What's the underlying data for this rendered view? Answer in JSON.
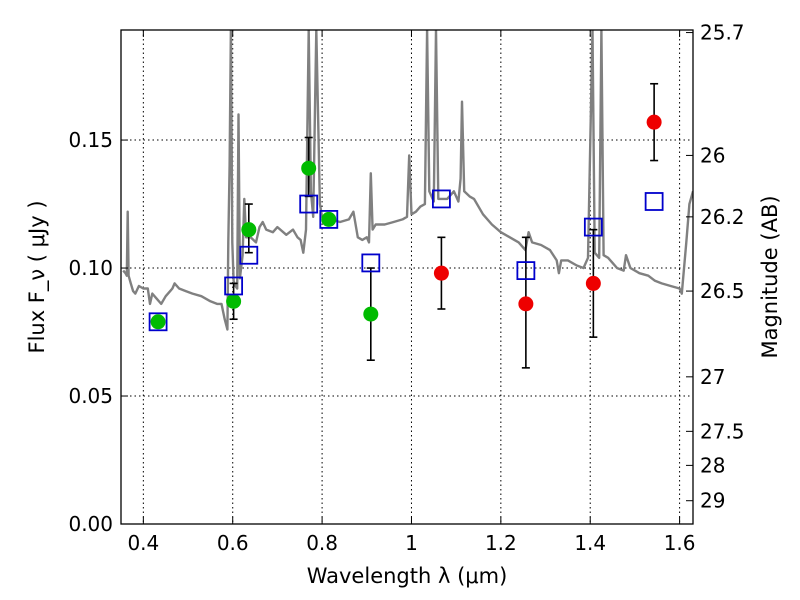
{
  "chart_data": {
    "type": "scatter",
    "xlabel": "Wavelength  λ (μm)",
    "ylabel": "Flux  F_ν ( μJy )",
    "y2label": "Magnitude (AB)",
    "xlim": [
      0.35,
      1.63
    ],
    "ylim": [
      0.0,
      0.193
    ],
    "grid": true,
    "x_ticks": [
      0.4,
      0.6,
      0.8,
      1.0,
      1.2,
      1.4,
      1.6
    ],
    "x_tick_labels": [
      "0.4",
      "0.6",
      "0.8",
      "1",
      "1.2",
      "1.4",
      "1.6"
    ],
    "y_ticks": [
      0.0,
      0.05,
      0.1,
      0.15
    ],
    "y_tick_labels": [
      "0.00",
      "0.05",
      "0.10",
      "0.15"
    ],
    "y2_ticks": [
      {
        "flux": 0.192,
        "label": "25.7"
      },
      {
        "flux": 0.144,
        "label": "26"
      },
      {
        "flux": 0.12,
        "label": "26.2"
      },
      {
        "flux": 0.091,
        "label": "26.5"
      },
      {
        "flux": 0.0575,
        "label": "27"
      },
      {
        "flux": 0.0362,
        "label": "27.5"
      },
      {
        "flux": 0.0229,
        "label": "28"
      },
      {
        "flux": 0.0091,
        "label": "29"
      }
    ],
    "series": [
      {
        "kind": "line",
        "color": "#808080",
        "points": [
          [
            0.355,
            0.099
          ],
          [
            0.36,
            0.098
          ],
          [
            0.363,
            0.097
          ],
          [
            0.365,
            0.122
          ],
          [
            0.367,
            0.097
          ],
          [
            0.372,
            0.094
          ],
          [
            0.377,
            0.091
          ],
          [
            0.382,
            0.09
          ],
          [
            0.39,
            0.093
          ],
          [
            0.4,
            0.092
          ],
          [
            0.41,
            0.092
          ],
          [
            0.415,
            0.086
          ],
          [
            0.42,
            0.09
          ],
          [
            0.43,
            0.088
          ],
          [
            0.44,
            0.086
          ],
          [
            0.45,
            0.089
          ],
          [
            0.46,
            0.091
          ],
          [
            0.465,
            0.092
          ],
          [
            0.47,
            0.094
          ],
          [
            0.48,
            0.092
          ],
          [
            0.495,
            0.091
          ],
          [
            0.51,
            0.09
          ],
          [
            0.53,
            0.089
          ],
          [
            0.55,
            0.087
          ],
          [
            0.565,
            0.086
          ],
          [
            0.575,
            0.086
          ],
          [
            0.582,
            0.08
          ],
          [
            0.588,
            0.076
          ],
          [
            0.59,
            0.11
          ],
          [
            0.593,
            0.14
          ],
          [
            0.596,
            0.194
          ],
          [
            0.599,
            0.11
          ],
          [
            0.602,
            0.095
          ],
          [
            0.606,
            0.093
          ],
          [
            0.61,
            0.092
          ],
          [
            0.613,
            0.16
          ],
          [
            0.616,
            0.096
          ],
          [
            0.622,
            0.105
          ],
          [
            0.626,
            0.127
          ],
          [
            0.63,
            0.112
          ],
          [
            0.64,
            0.112
          ],
          [
            0.652,
            0.11
          ],
          [
            0.66,
            0.116
          ],
          [
            0.667,
            0.118
          ],
          [
            0.675,
            0.115
          ],
          [
            0.69,
            0.114
          ],
          [
            0.7,
            0.116
          ],
          [
            0.72,
            0.113
          ],
          [
            0.735,
            0.115
          ],
          [
            0.745,
            0.112
          ],
          [
            0.752,
            0.111
          ],
          [
            0.758,
            0.106
          ],
          [
            0.764,
            0.115
          ],
          [
            0.77,
            0.193
          ],
          [
            0.775,
            0.13
          ],
          [
            0.78,
            0.12
          ],
          [
            0.787,
            0.193
          ],
          [
            0.795,
            0.125
          ],
          [
            0.8,
            0.12
          ],
          [
            0.82,
            0.119
          ],
          [
            0.84,
            0.118
          ],
          [
            0.86,
            0.119
          ],
          [
            0.87,
            0.122
          ],
          [
            0.88,
            0.112
          ],
          [
            0.89,
            0.111
          ],
          [
            0.9,
            0.112
          ],
          [
            0.905,
            0.11
          ],
          [
            0.909,
            0.137
          ],
          [
            0.913,
            0.115
          ],
          [
            0.92,
            0.117
          ],
          [
            0.94,
            0.117
          ],
          [
            0.96,
            0.118
          ],
          [
            0.98,
            0.119
          ],
          [
            0.99,
            0.12
          ],
          [
            0.995,
            0.144
          ],
          [
            1.0,
            0.121
          ],
          [
            1.01,
            0.122
          ],
          [
            1.02,
            0.124
          ],
          [
            1.03,
            0.125
          ],
          [
            1.035,
            0.193
          ],
          [
            1.04,
            0.13
          ],
          [
            1.05,
            0.126
          ],
          [
            1.055,
            0.193
          ],
          [
            1.06,
            0.127
          ],
          [
            1.08,
            0.127
          ],
          [
            1.095,
            0.13
          ],
          [
            1.105,
            0.126
          ],
          [
            1.11,
            0.135
          ],
          [
            1.113,
            0.165
          ],
          [
            1.118,
            0.13
          ],
          [
            1.13,
            0.128
          ],
          [
            1.14,
            0.127
          ],
          [
            1.16,
            0.121
          ],
          [
            1.18,
            0.117
          ],
          [
            1.2,
            0.114
          ],
          [
            1.22,
            0.112
          ],
          [
            1.24,
            0.11
          ],
          [
            1.255,
            0.107
          ],
          [
            1.262,
            0.114
          ],
          [
            1.27,
            0.11
          ],
          [
            1.29,
            0.109
          ],
          [
            1.31,
            0.107
          ],
          [
            1.325,
            0.103
          ],
          [
            1.33,
            0.098
          ],
          [
            1.335,
            0.103
          ],
          [
            1.35,
            0.103
          ],
          [
            1.37,
            0.101
          ],
          [
            1.385,
            0.1
          ],
          [
            1.395,
            0.104
          ],
          [
            1.405,
            0.193
          ],
          [
            1.41,
            0.106
          ],
          [
            1.42,
            0.104
          ],
          [
            1.425,
            0.193
          ],
          [
            1.43,
            0.105
          ],
          [
            1.44,
            0.104
          ],
          [
            1.45,
            0.102
          ],
          [
            1.46,
            0.1
          ],
          [
            1.475,
            0.099
          ],
          [
            1.48,
            0.105
          ],
          [
            1.49,
            0.1
          ],
          [
            1.5,
            0.099
          ],
          [
            1.51,
            0.098
          ],
          [
            1.53,
            0.097
          ],
          [
            1.545,
            0.095
          ],
          [
            1.56,
            0.094
          ],
          [
            1.58,
            0.093
          ],
          [
            1.6,
            0.092
          ],
          [
            1.605,
            0.09
          ],
          [
            1.615,
            0.11
          ],
          [
            1.622,
            0.125
          ],
          [
            1.63,
            0.13
          ]
        ]
      },
      {
        "kind": "squares",
        "color": "#0000cc",
        "points": [
          [
            0.433,
            0.079
          ],
          [
            0.602,
            0.093
          ],
          [
            0.636,
            0.105
          ],
          [
            0.77,
            0.125
          ],
          [
            0.815,
            0.119
          ],
          [
            0.909,
            0.102
          ],
          [
            1.067,
            0.127
          ],
          [
            1.256,
            0.099
          ],
          [
            1.407,
            0.116
          ],
          [
            1.543,
            0.126
          ]
        ]
      },
      {
        "kind": "dots",
        "color": "#00bb00",
        "points": [
          [
            0.433,
            0.079
          ],
          [
            0.602,
            0.087
          ],
          [
            0.636,
            0.115
          ],
          [
            0.77,
            0.139
          ],
          [
            0.815,
            0.119
          ],
          [
            0.909,
            0.082
          ]
        ],
        "errors": [
          null,
          [
            0.08,
            0.094
          ],
          [
            0.106,
            0.125
          ],
          [
            0.128,
            0.151
          ],
          null,
          [
            0.064,
            0.1
          ]
        ]
      },
      {
        "kind": "dots",
        "color": "#ee0000",
        "points": [
          [
            1.067,
            0.098
          ],
          [
            1.256,
            0.086
          ],
          [
            1.407,
            0.094
          ],
          [
            1.543,
            0.157
          ]
        ],
        "errors": [
          [
            0.084,
            0.112
          ],
          [
            0.061,
            0.112
          ],
          [
            0.073,
            0.115
          ],
          [
            0.142,
            0.172
          ]
        ]
      }
    ]
  }
}
